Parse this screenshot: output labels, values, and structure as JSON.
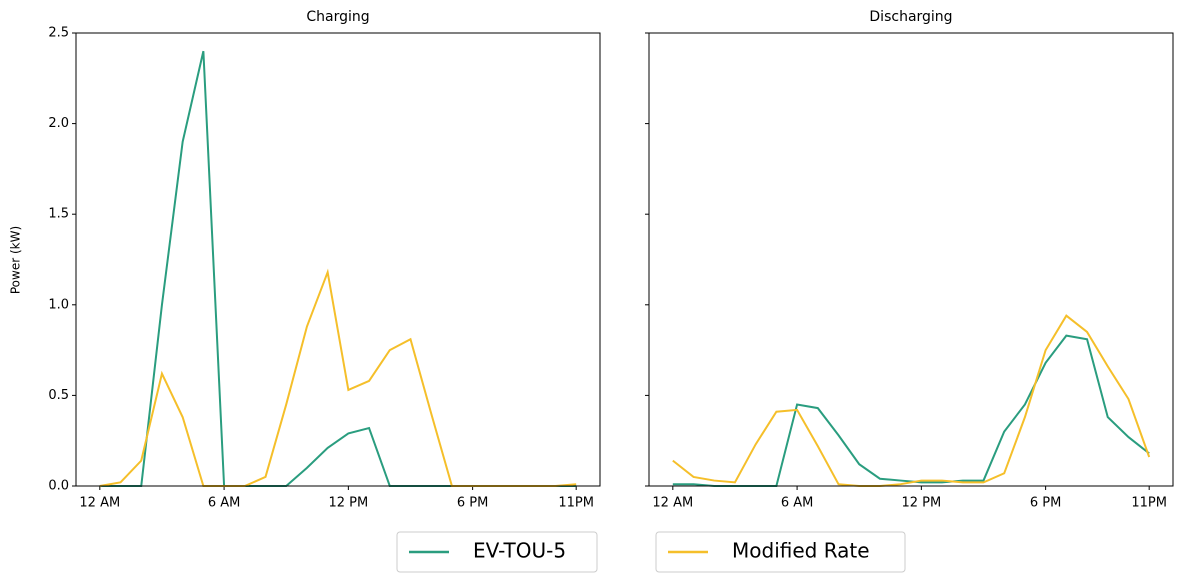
{
  "chart_data": [
    {
      "type": "line",
      "title": "Charging",
      "y_label": "Power (kW)",
      "x": [
        0,
        1,
        2,
        3,
        4,
        5,
        6,
        7,
        8,
        9,
        10,
        11,
        12,
        13,
        14,
        15,
        16,
        17,
        18,
        19,
        20,
        21,
        22,
        23
      ],
      "xlim": [
        -1.15,
        24.15
      ],
      "xticks": [
        {
          "value": 0,
          "label": "12 AM"
        },
        {
          "value": 6,
          "label": "6 AM"
        },
        {
          "value": 12,
          "label": "12 PM"
        },
        {
          "value": 18,
          "label": "6 PM"
        },
        {
          "value": 23,
          "label": "11PM"
        }
      ],
      "ylim": [
        0,
        2.5
      ],
      "yticks": [
        {
          "value": 0,
          "label": "0.0"
        },
        {
          "value": 0.5,
          "label": "0.5"
        },
        {
          "value": 1,
          "label": "1.0"
        },
        {
          "value": 1.5,
          "label": "1.5"
        },
        {
          "value": 2,
          "label": "2.0"
        },
        {
          "value": 2.5,
          "label": "2.5"
        }
      ],
      "series": [
        {
          "name": "EV-TOU-5",
          "color": "#2a9d7f",
          "values": [
            0,
            0,
            0,
            1.0,
            1.9,
            2.4,
            0,
            0,
            0,
            0,
            0.1,
            0.21,
            0.29,
            0.32,
            0,
            0,
            0,
            0,
            0,
            0,
            0,
            0,
            0,
            0
          ]
        },
        {
          "name": "Modified Rate",
          "color": "#f5bf2a",
          "values": [
            0,
            0.02,
            0.14,
            0.62,
            0.38,
            0,
            0,
            0,
            0.05,
            0.45,
            0.88,
            1.18,
            0.53,
            0.58,
            0.75,
            0.81,
            0.4,
            0,
            0,
            0,
            0,
            0,
            0,
            0.01
          ]
        }
      ]
    },
    {
      "type": "line",
      "title": "Discharging",
      "x": [
        0,
        1,
        2,
        3,
        4,
        5,
        6,
        7,
        8,
        9,
        10,
        11,
        12,
        13,
        14,
        15,
        16,
        17,
        18,
        19,
        20,
        21,
        22,
        23
      ],
      "xlim": [
        -1.15,
        24.15
      ],
      "xticks": [
        {
          "value": 0,
          "label": "12 AM"
        },
        {
          "value": 6,
          "label": "6 AM"
        },
        {
          "value": 12,
          "label": "12 PM"
        },
        {
          "value": 18,
          "label": "6 PM"
        },
        {
          "value": 23,
          "label": "11PM"
        }
      ],
      "ylim": [
        0,
        2.5
      ],
      "yticks": [
        0,
        0.5,
        1,
        1.5,
        2,
        2.5
      ],
      "series": [
        {
          "color": "#2a9d7f",
          "values": [
            0.01,
            0.01,
            0,
            0,
            0,
            0,
            0.45,
            0.43,
            0.28,
            0.12,
            0.04,
            0.03,
            0.02,
            0.02,
            0.03,
            0.03,
            0.3,
            0.45,
            0.68,
            0.83,
            0.81,
            0.38,
            0.27,
            0.18
          ]
        },
        {
          "color": "#f5bf2a",
          "values": [
            0.14,
            0.05,
            0.03,
            0.02,
            0.23,
            0.41,
            0.42,
            0.22,
            0.01,
            0,
            0,
            0.01,
            0.03,
            0.03,
            0.02,
            0.02,
            0.07,
            0.38,
            0.75,
            0.94,
            0.85,
            0.66,
            0.48,
            0.16
          ]
        }
      ]
    }
  ]
}
